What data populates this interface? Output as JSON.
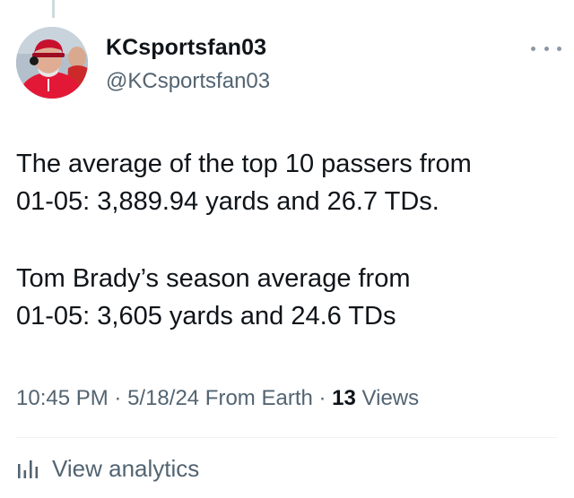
{
  "tweet": {
    "author": {
      "display_name": "KCsportsfan03",
      "handle": "@KCsportsfan03",
      "avatar_icon": "profile-photo"
    },
    "more_icon": "more-horizontal-icon",
    "paragraphs": [
      "The average of the top 10 passers from\n01-05: 3,889.94 yards and 26.7 TDs.",
      "Tom Brady’s season average from\n01-05: 3,605 yards and 24.6 TDs"
    ],
    "meta": {
      "time": "10:45 PM",
      "separator": " · ",
      "date": "5/18/24",
      "source": " From Earth",
      "views_count": "13",
      "views_label": " Views"
    },
    "analytics": {
      "icon": "bar-chart-icon",
      "label": "View analytics"
    }
  },
  "colors": {
    "text_primary": "#0f1419",
    "text_secondary": "#536471",
    "divider": "#eff3f4",
    "avatar_accent": "#e31837"
  }
}
